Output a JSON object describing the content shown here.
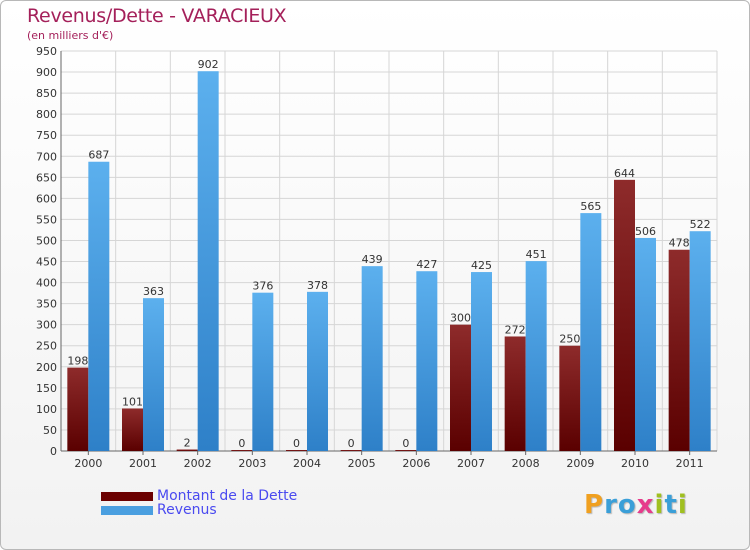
{
  "chart_data": {
    "type": "bar",
    "title": "Revenus/Dette - VARACIEUX",
    "subtitle": "(en milliers d'€)",
    "categories": [
      "2000",
      "2001",
      "2002",
      "2003",
      "2004",
      "2005",
      "2006",
      "2007",
      "2008",
      "2009",
      "2010",
      "2011"
    ],
    "series": [
      {
        "name": "Montant de la Dette",
        "color": "#6b0000",
        "values": [
          198,
          101,
          2,
          0,
          0,
          0,
          0,
          300,
          272,
          250,
          644,
          478
        ]
      },
      {
        "name": "Revenus",
        "color": "#4a9fe0",
        "values": [
          687,
          363,
          902,
          376,
          378,
          439,
          427,
          425,
          451,
          565,
          506,
          522
        ]
      }
    ],
    "ylim": [
      0,
      950
    ],
    "ytick_step": 50,
    "yticks": [
      "0",
      "50",
      "100",
      "150",
      "200",
      "250",
      "300",
      "350",
      "400",
      "450",
      "500",
      "550",
      "600",
      "650",
      "700",
      "750",
      "800",
      "850",
      "900",
      "950"
    ],
    "grid": true,
    "legend_position": "bottom-left"
  },
  "logo": {
    "letters": [
      "P",
      "r",
      "o",
      "x",
      "i",
      "t",
      "i"
    ],
    "colors": [
      "#f0a020",
      "#3a9fd8",
      "#3a9fd8",
      "#e63c8c",
      "#a0c020",
      "#3a9fd8",
      "#a0c020"
    ]
  }
}
